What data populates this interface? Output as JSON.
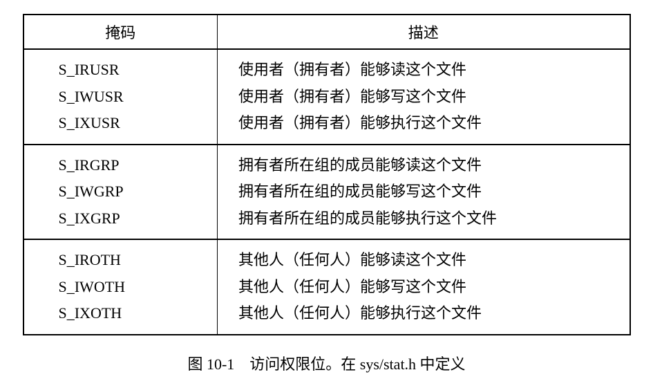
{
  "table": {
    "headers": {
      "mask": "掩码",
      "desc": "描述"
    },
    "groups": [
      {
        "masks": [
          "S_IRUSR",
          "S_IWUSR",
          "S_IXUSR"
        ],
        "descs": [
          "使用者（拥有者）能够读这个文件",
          "使用者（拥有者）能够写这个文件",
          "使用者（拥有者）能够执行这个文件"
        ]
      },
      {
        "masks": [
          "S_IRGRP",
          "S_IWGRP",
          "S_IXGRP"
        ],
        "descs": [
          "拥有者所在组的成员能够读这个文件",
          "拥有者所在组的成员能够写这个文件",
          "拥有者所在组的成员能够执行这个文件"
        ]
      },
      {
        "masks": [
          "S_IROTH",
          "S_IWOTH",
          "S_IXOTH"
        ],
        "descs": [
          "其他人（任何人）能够读这个文件",
          "其他人（任何人）能够写这个文件",
          "其他人（任何人）能够执行这个文件"
        ]
      }
    ]
  },
  "caption": "图 10-1 访问权限位。在 sys/stat.h 中定义",
  "style": {
    "text_color": "#000000",
    "background_color": "#ffffff",
    "border_color": "#000000",
    "font_size_pt": 16,
    "caption_font_size_pt": 16
  }
}
